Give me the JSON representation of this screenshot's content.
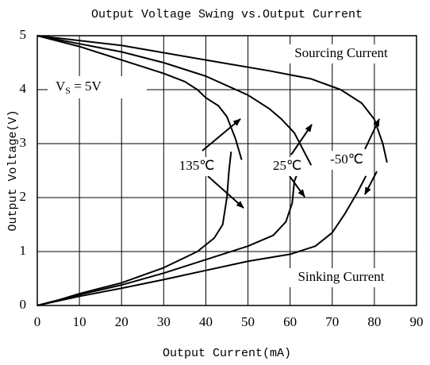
{
  "chart_data": {
    "type": "line",
    "title": "Output Voltage Swing vs.Output Current",
    "x_label": "Output Current(mA)",
    "y_label": "Output Voltage(V)",
    "xlim": [
      0,
      90
    ],
    "xticks": [
      0,
      10,
      20,
      30,
      40,
      50,
      60,
      70,
      80,
      90
    ],
    "ylim": [
      0,
      5
    ],
    "yticks": [
      0,
      1,
      2,
      3,
      4,
      5
    ],
    "grid": true,
    "annotations": {
      "sourcing": "Sourcing Current",
      "sinking": "Sinking Current",
      "supply": {
        "text": "V",
        "subscript": "S",
        "suffix": " = 5V"
      },
      "temperatures": [
        "135℃",
        "25℃",
        "-50℃"
      ]
    },
    "series": [
      {
        "color": "#000000",
        "x": [
          0,
          10,
          20,
          30,
          35,
          38,
          40,
          43,
          45,
          47,
          48.5
        ],
        "values": [
          5,
          4.8,
          4.55,
          4.3,
          4.15,
          4.0,
          3.85,
          3.7,
          3.5,
          3.1,
          2.7
        ]
      },
      {
        "color": "#000000",
        "x": [
          0,
          10,
          20,
          30,
          40,
          50,
          55,
          58,
          61,
          63,
          65
        ],
        "values": [
          5,
          4.85,
          4.7,
          4.5,
          4.25,
          3.9,
          3.65,
          3.45,
          3.2,
          2.9,
          2.6
        ]
      },
      {
        "color": "#000000",
        "x": [
          0,
          20,
          40,
          55,
          65,
          72,
          77,
          80,
          82,
          83
        ],
        "values": [
          5,
          4.82,
          4.55,
          4.35,
          4.2,
          4.0,
          3.75,
          3.45,
          3.0,
          2.65
        ]
      },
      {
        "color": "#000000",
        "x": [
          0,
          5,
          10,
          20,
          30,
          38,
          42,
          44,
          45,
          45.5,
          46
        ],
        "values": [
          0,
          0.1,
          0.22,
          0.42,
          0.7,
          1.0,
          1.25,
          1.5,
          2.0,
          2.5,
          2.85
        ]
      },
      {
        "color": "#000000",
        "x": [
          0,
          10,
          20,
          30,
          40,
          50,
          56,
          59,
          60.5,
          61,
          62
        ],
        "values": [
          0,
          0.2,
          0.38,
          0.6,
          0.85,
          1.1,
          1.3,
          1.55,
          1.9,
          2.3,
          2.5
        ]
      },
      {
        "color": "#000000",
        "x": [
          0,
          10,
          20,
          30,
          40,
          50,
          60,
          66,
          70,
          73,
          76,
          78
        ],
        "values": [
          0,
          0.17,
          0.32,
          0.48,
          0.65,
          0.82,
          0.95,
          1.1,
          1.35,
          1.7,
          2.1,
          2.4
        ]
      }
    ]
  }
}
